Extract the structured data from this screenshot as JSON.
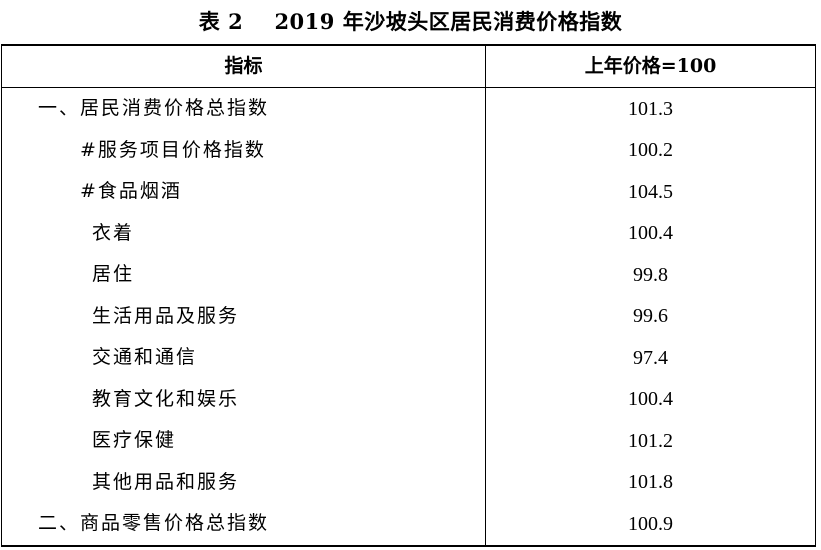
{
  "title": "表 2    2019 年沙坡头区居民消费价格指数",
  "header": {
    "indicator": "指标",
    "value": "上年价格=100"
  },
  "rows": [
    {
      "label": "一、居民消费价格总指数",
      "value": "101.3"
    },
    {
      "label": "#服务项目价格指数",
      "value": "100.2"
    },
    {
      "label": "#食品烟酒",
      "value": "104.5"
    },
    {
      "label": "衣着",
      "value": "100.4"
    },
    {
      "label": "居住",
      "value": "99.8"
    },
    {
      "label": "生活用品及服务",
      "value": "99.6"
    },
    {
      "label": "交通和通信",
      "value": "97.4"
    },
    {
      "label": "教育文化和娱乐",
      "value": "100.4"
    },
    {
      "label": "医疗保健",
      "value": "101.2"
    },
    {
      "label": "其他用品和服务",
      "value": "101.8"
    },
    {
      "label": "二、商品零售价格总指数",
      "value": "100.9"
    }
  ]
}
